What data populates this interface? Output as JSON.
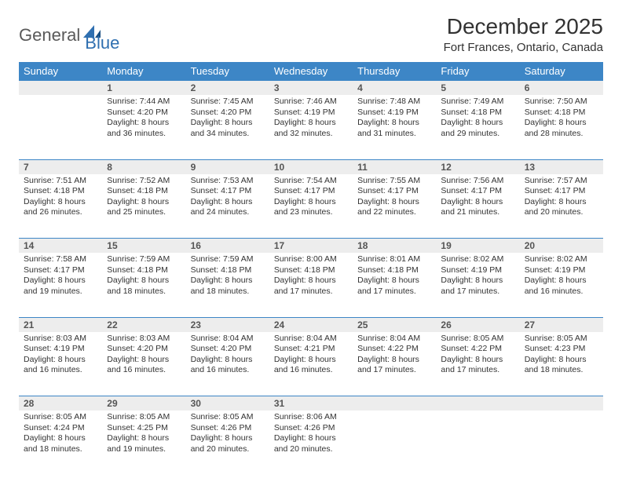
{
  "logo": {
    "word1": "General",
    "word2": "Blue"
  },
  "title": "December 2025",
  "location": "Fort Frances, Ontario, Canada",
  "colors": {
    "header_bg": "#3d86c6",
    "header_text": "#ffffff",
    "daynum_bg": "#ededed",
    "rule": "#3d86c6",
    "body_text": "#333333"
  },
  "dow": [
    "Sunday",
    "Monday",
    "Tuesday",
    "Wednesday",
    "Thursday",
    "Friday",
    "Saturday"
  ],
  "weeks": [
    [
      {
        "n": "",
        "lines": []
      },
      {
        "n": "1",
        "lines": [
          "Sunrise: 7:44 AM",
          "Sunset: 4:20 PM",
          "Daylight: 8 hours",
          "and 36 minutes."
        ]
      },
      {
        "n": "2",
        "lines": [
          "Sunrise: 7:45 AM",
          "Sunset: 4:20 PM",
          "Daylight: 8 hours",
          "and 34 minutes."
        ]
      },
      {
        "n": "3",
        "lines": [
          "Sunrise: 7:46 AM",
          "Sunset: 4:19 PM",
          "Daylight: 8 hours",
          "and 32 minutes."
        ]
      },
      {
        "n": "4",
        "lines": [
          "Sunrise: 7:48 AM",
          "Sunset: 4:19 PM",
          "Daylight: 8 hours",
          "and 31 minutes."
        ]
      },
      {
        "n": "5",
        "lines": [
          "Sunrise: 7:49 AM",
          "Sunset: 4:18 PM",
          "Daylight: 8 hours",
          "and 29 minutes."
        ]
      },
      {
        "n": "6",
        "lines": [
          "Sunrise: 7:50 AM",
          "Sunset: 4:18 PM",
          "Daylight: 8 hours",
          "and 28 minutes."
        ]
      }
    ],
    [
      {
        "n": "7",
        "lines": [
          "Sunrise: 7:51 AM",
          "Sunset: 4:18 PM",
          "Daylight: 8 hours",
          "and 26 minutes."
        ]
      },
      {
        "n": "8",
        "lines": [
          "Sunrise: 7:52 AM",
          "Sunset: 4:18 PM",
          "Daylight: 8 hours",
          "and 25 minutes."
        ]
      },
      {
        "n": "9",
        "lines": [
          "Sunrise: 7:53 AM",
          "Sunset: 4:17 PM",
          "Daylight: 8 hours",
          "and 24 minutes."
        ]
      },
      {
        "n": "10",
        "lines": [
          "Sunrise: 7:54 AM",
          "Sunset: 4:17 PM",
          "Daylight: 8 hours",
          "and 23 minutes."
        ]
      },
      {
        "n": "11",
        "lines": [
          "Sunrise: 7:55 AM",
          "Sunset: 4:17 PM",
          "Daylight: 8 hours",
          "and 22 minutes."
        ]
      },
      {
        "n": "12",
        "lines": [
          "Sunrise: 7:56 AM",
          "Sunset: 4:17 PM",
          "Daylight: 8 hours",
          "and 21 minutes."
        ]
      },
      {
        "n": "13",
        "lines": [
          "Sunrise: 7:57 AM",
          "Sunset: 4:17 PM",
          "Daylight: 8 hours",
          "and 20 minutes."
        ]
      }
    ],
    [
      {
        "n": "14",
        "lines": [
          "Sunrise: 7:58 AM",
          "Sunset: 4:17 PM",
          "Daylight: 8 hours",
          "and 19 minutes."
        ]
      },
      {
        "n": "15",
        "lines": [
          "Sunrise: 7:59 AM",
          "Sunset: 4:18 PM",
          "Daylight: 8 hours",
          "and 18 minutes."
        ]
      },
      {
        "n": "16",
        "lines": [
          "Sunrise: 7:59 AM",
          "Sunset: 4:18 PM",
          "Daylight: 8 hours",
          "and 18 minutes."
        ]
      },
      {
        "n": "17",
        "lines": [
          "Sunrise: 8:00 AM",
          "Sunset: 4:18 PM",
          "Daylight: 8 hours",
          "and 17 minutes."
        ]
      },
      {
        "n": "18",
        "lines": [
          "Sunrise: 8:01 AM",
          "Sunset: 4:18 PM",
          "Daylight: 8 hours",
          "and 17 minutes."
        ]
      },
      {
        "n": "19",
        "lines": [
          "Sunrise: 8:02 AM",
          "Sunset: 4:19 PM",
          "Daylight: 8 hours",
          "and 17 minutes."
        ]
      },
      {
        "n": "20",
        "lines": [
          "Sunrise: 8:02 AM",
          "Sunset: 4:19 PM",
          "Daylight: 8 hours",
          "and 16 minutes."
        ]
      }
    ],
    [
      {
        "n": "21",
        "lines": [
          "Sunrise: 8:03 AM",
          "Sunset: 4:19 PM",
          "Daylight: 8 hours",
          "and 16 minutes."
        ]
      },
      {
        "n": "22",
        "lines": [
          "Sunrise: 8:03 AM",
          "Sunset: 4:20 PM",
          "Daylight: 8 hours",
          "and 16 minutes."
        ]
      },
      {
        "n": "23",
        "lines": [
          "Sunrise: 8:04 AM",
          "Sunset: 4:20 PM",
          "Daylight: 8 hours",
          "and 16 minutes."
        ]
      },
      {
        "n": "24",
        "lines": [
          "Sunrise: 8:04 AM",
          "Sunset: 4:21 PM",
          "Daylight: 8 hours",
          "and 16 minutes."
        ]
      },
      {
        "n": "25",
        "lines": [
          "Sunrise: 8:04 AM",
          "Sunset: 4:22 PM",
          "Daylight: 8 hours",
          "and 17 minutes."
        ]
      },
      {
        "n": "26",
        "lines": [
          "Sunrise: 8:05 AM",
          "Sunset: 4:22 PM",
          "Daylight: 8 hours",
          "and 17 minutes."
        ]
      },
      {
        "n": "27",
        "lines": [
          "Sunrise: 8:05 AM",
          "Sunset: 4:23 PM",
          "Daylight: 8 hours",
          "and 18 minutes."
        ]
      }
    ],
    [
      {
        "n": "28",
        "lines": [
          "Sunrise: 8:05 AM",
          "Sunset: 4:24 PM",
          "Daylight: 8 hours",
          "and 18 minutes."
        ]
      },
      {
        "n": "29",
        "lines": [
          "Sunrise: 8:05 AM",
          "Sunset: 4:25 PM",
          "Daylight: 8 hours",
          "and 19 minutes."
        ]
      },
      {
        "n": "30",
        "lines": [
          "Sunrise: 8:05 AM",
          "Sunset: 4:26 PM",
          "Daylight: 8 hours",
          "and 20 minutes."
        ]
      },
      {
        "n": "31",
        "lines": [
          "Sunrise: 8:06 AM",
          "Sunset: 4:26 PM",
          "Daylight: 8 hours",
          "and 20 minutes."
        ]
      },
      {
        "n": "",
        "lines": []
      },
      {
        "n": "",
        "lines": []
      },
      {
        "n": "",
        "lines": []
      }
    ]
  ]
}
